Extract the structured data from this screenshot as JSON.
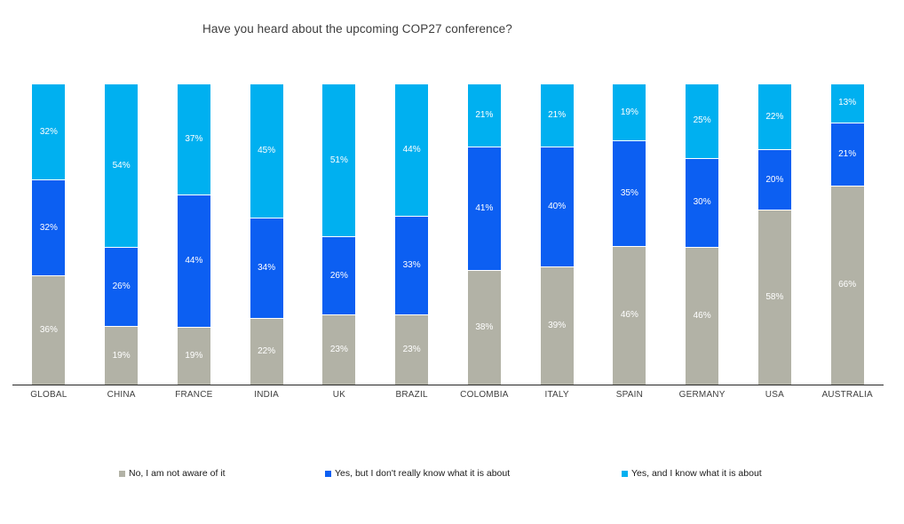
{
  "title": "Have you heard about the upcoming COP27 conference?",
  "colors": {
    "no_aware": "#b2b2a6",
    "yes_dont_know": "#0c5ff2",
    "yes_know": "#00b0f0",
    "axis": "#262626",
    "segment_label": "#ffffff",
    "category_label": "#3f3f3f"
  },
  "chart_data": {
    "type": "bar",
    "stacked": true,
    "orientation": "vertical",
    "title": "Have you heard about the upcoming COP27 conference?",
    "xlabel": "",
    "ylabel": "",
    "ylim": [
      0,
      100
    ],
    "grid": false,
    "legend_position": "bottom",
    "value_suffix": "%",
    "categories": [
      "GLOBAL",
      "CHINA",
      "FRANCE",
      "INDIA",
      "UK",
      "BRAZIL",
      "COLOMBIA",
      "ITALY",
      "SPAIN",
      "GERMANY",
      "USA",
      "AUSTRALIA"
    ],
    "series": [
      {
        "name": "No, I am not aware of it",
        "color_key": "no_aware",
        "values": [
          36,
          19,
          19,
          22,
          23,
          23,
          38,
          39,
          46,
          46,
          58,
          66
        ]
      },
      {
        "name": "Yes, but I don't really know what it is about",
        "color_key": "yes_dont_know",
        "values": [
          32,
          26,
          44,
          34,
          26,
          33,
          41,
          40,
          35,
          30,
          20,
          21
        ]
      },
      {
        "name": "Yes, and I know what it is about",
        "color_key": "yes_know",
        "values": [
          32,
          54,
          37,
          45,
          51,
          44,
          21,
          21,
          19,
          25,
          22,
          13
        ]
      }
    ]
  }
}
